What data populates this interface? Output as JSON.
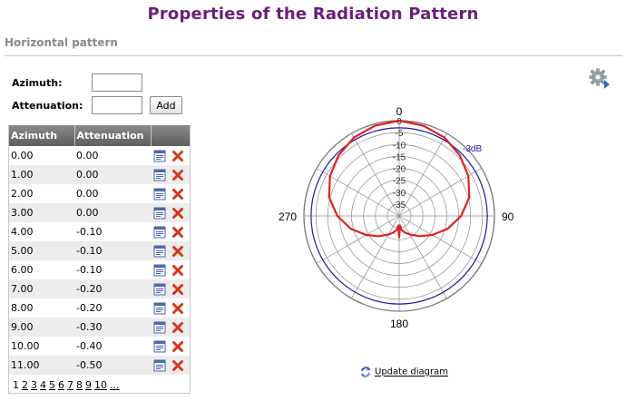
{
  "page": {
    "title": "Properties of the Radiation Pattern",
    "section": "Horizontal pattern"
  },
  "form": {
    "azimuth_label": "Azimuth:",
    "azimuth_value": "",
    "attenuation_label": "Attenuation:",
    "attenuation_value": "",
    "add_label": "Add"
  },
  "table": {
    "headers": [
      "Azimuth",
      "Attenuation",
      ""
    ],
    "rows": [
      {
        "azimuth": "0.00",
        "attenuation": "0.00"
      },
      {
        "azimuth": "1.00",
        "attenuation": "0.00"
      },
      {
        "azimuth": "2.00",
        "attenuation": "0.00"
      },
      {
        "azimuth": "3.00",
        "attenuation": "0.00"
      },
      {
        "azimuth": "4.00",
        "attenuation": "-0.10"
      },
      {
        "azimuth": "5.00",
        "attenuation": "-0.10"
      },
      {
        "azimuth": "6.00",
        "attenuation": "-0.10"
      },
      {
        "azimuth": "7.00",
        "attenuation": "-0.20"
      },
      {
        "azimuth": "8.00",
        "attenuation": "-0.20"
      },
      {
        "azimuth": "9.00",
        "attenuation": "-0.30"
      },
      {
        "azimuth": "10.00",
        "attenuation": "-0.40"
      },
      {
        "azimuth": "11.00",
        "attenuation": "-0.50"
      }
    ],
    "pages": [
      "1",
      "2",
      "3",
      "4",
      "5",
      "6",
      "7",
      "8",
      "9",
      "10",
      "..."
    ],
    "current_page": "1"
  },
  "diagram": {
    "update_label": "Update diagram",
    "pattern_color": "#e02020",
    "threshold_color": "#1a1aa8"
  },
  "chart_data": {
    "type": "polar",
    "title": "",
    "angle_labels": [
      "0",
      "90",
      "180",
      "270"
    ],
    "radial_ticks": [
      "0",
      "-5",
      "-10",
      "-15",
      "-20",
      "-25",
      "-30",
      "-35"
    ],
    "rlim": [
      -40,
      0
    ],
    "threshold": {
      "label": "-3dB",
      "value": -3
    },
    "series": [
      {
        "angles": [
          0,
          15,
          30,
          45,
          60,
          75,
          90,
          105,
          120,
          135,
          150,
          160,
          170,
          175,
          180,
          185,
          190,
          200,
          210,
          225,
          240,
          255,
          270,
          285,
          300,
          315,
          330,
          345,
          360
        ],
        "values": [
          0,
          -0.8,
          -2,
          -4,
          -6.5,
          -9.5,
          -14,
          -19,
          -24,
          -28,
          -31,
          -32.5,
          -34,
          -36,
          -31,
          -36,
          -34,
          -32.5,
          -31,
          -28,
          -24,
          -19,
          -14,
          -9.5,
          -6.5,
          -4,
          -2,
          -0.8,
          0
        ]
      }
    ]
  },
  "colors": {
    "title": "#6a1f7a",
    "table_header": "#6e6e6e",
    "alt_row": "#ececec"
  },
  "icons": {
    "settings": "gear-icon",
    "edit": "edit-icon",
    "delete": "delete-icon",
    "refresh": "refresh-icon"
  }
}
